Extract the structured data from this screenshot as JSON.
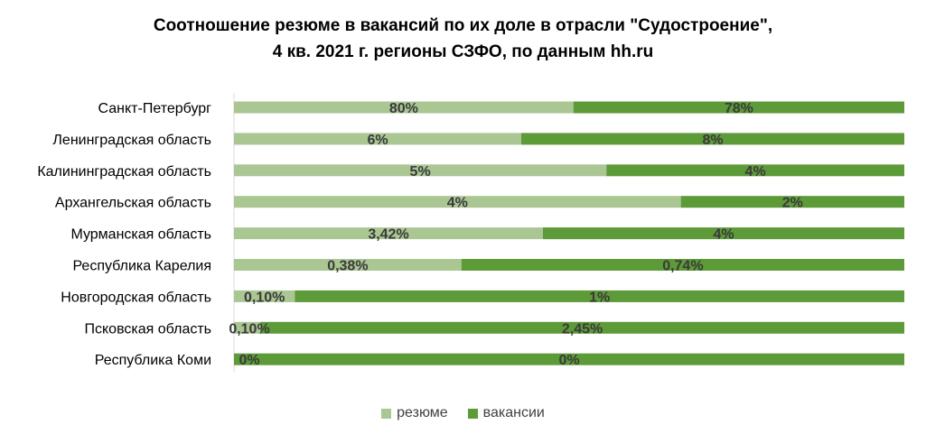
{
  "colors": {
    "resume": "#a9c693",
    "vacancy": "#5d9a38",
    "label_text": "#3a3a3a",
    "axis": "#d9d9d9"
  },
  "chart_data": {
    "type": "bar",
    "orientation": "horizontal",
    "stacked": "100%",
    "title": "Соотношение  резюме в вакансий по их доле в отрасли \"Судостроение\",",
    "subtitle": "4 кв. 2021 г. регионы СЗФО, по данным hh.ru",
    "categories": [
      "Санкт-Петербург",
      "Ленинградская область",
      "Калининградская область",
      "Архангельская область",
      "Мурманская область",
      "Республика Карелия",
      "Новгородская область",
      "Псковская область",
      "Республика Коми"
    ],
    "series": [
      {
        "name": "резюме",
        "values": [
          80,
          6,
          5,
          4,
          3.42,
          0.38,
          0.1,
          0.1,
          0
        ],
        "labels": [
          "80%",
          "6%",
          "5%",
          "4%",
          "3,42%",
          "0,38%",
          "0,10%",
          "0,10%",
          "0%"
        ]
      },
      {
        "name": "вакансии",
        "values": [
          78,
          8,
          4,
          2,
          4,
          0.74,
          1,
          2.45,
          0
        ],
        "labels": [
          "78%",
          "8%",
          "4%",
          "2%",
          "4%",
          "0,74%",
          "1%",
          "2,45%",
          "0%"
        ]
      }
    ],
    "legend_position": "bottom",
    "grid": false
  }
}
